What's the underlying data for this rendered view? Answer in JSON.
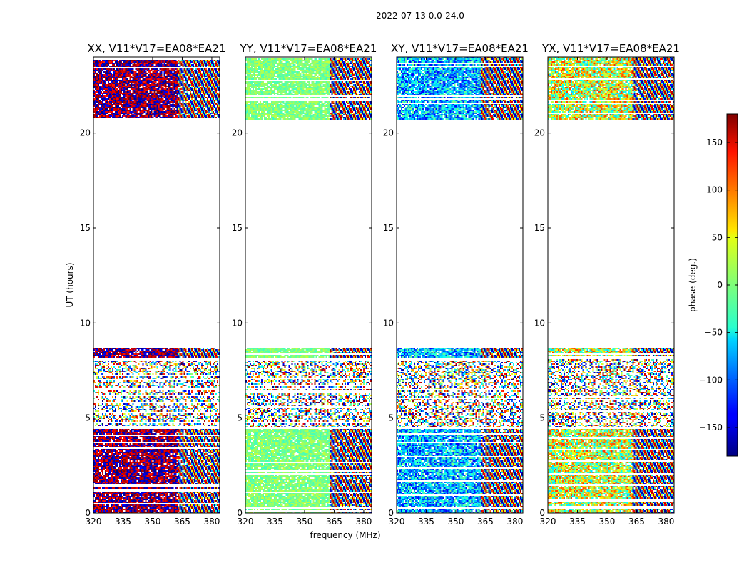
{
  "chart_data": {
    "type": "heatmap",
    "suptitle": "2022-07-13 0.0-24.0",
    "xlabel": "frequency (MHz)",
    "ylabel": "UT (hours)",
    "xlim": [
      320,
      384
    ],
    "ylim": [
      0,
      24
    ],
    "xticks": [
      320,
      335,
      350,
      365,
      380
    ],
    "yticks": [
      0,
      5,
      10,
      15,
      20
    ],
    "panels": [
      {
        "title": "XX, V11*V17=EA08*EA21",
        "phase_center_deg": 175,
        "scatter_deg": 50
      },
      {
        "title": "YY, V11*V17=EA08*EA21",
        "phase_center_deg": 0,
        "scatter_deg": 25
      },
      {
        "title": "XY, V11*V17=EA08*EA21",
        "phase_center_deg": -70,
        "scatter_deg": 70
      },
      {
        "title": "YX, V11*V17=EA08*EA21",
        "phase_center_deg": 30,
        "scatter_deg": 90
      }
    ],
    "data_time_ranges_hours": [
      [
        0,
        4.4
      ],
      [
        4.5,
        8.1
      ],
      [
        8.2,
        8.7
      ],
      [
        20.7,
        24
      ]
    ],
    "noisy_time_ranges_hours": [
      [
        4.5,
        8.1
      ]
    ],
    "fringing_above_mhz": 363,
    "colorbar": {
      "label": "phase (deg.)",
      "range": [
        -180,
        180
      ],
      "ticks": [
        -150,
        -100,
        -50,
        0,
        50,
        100,
        150
      ],
      "colormap": "jet"
    }
  }
}
